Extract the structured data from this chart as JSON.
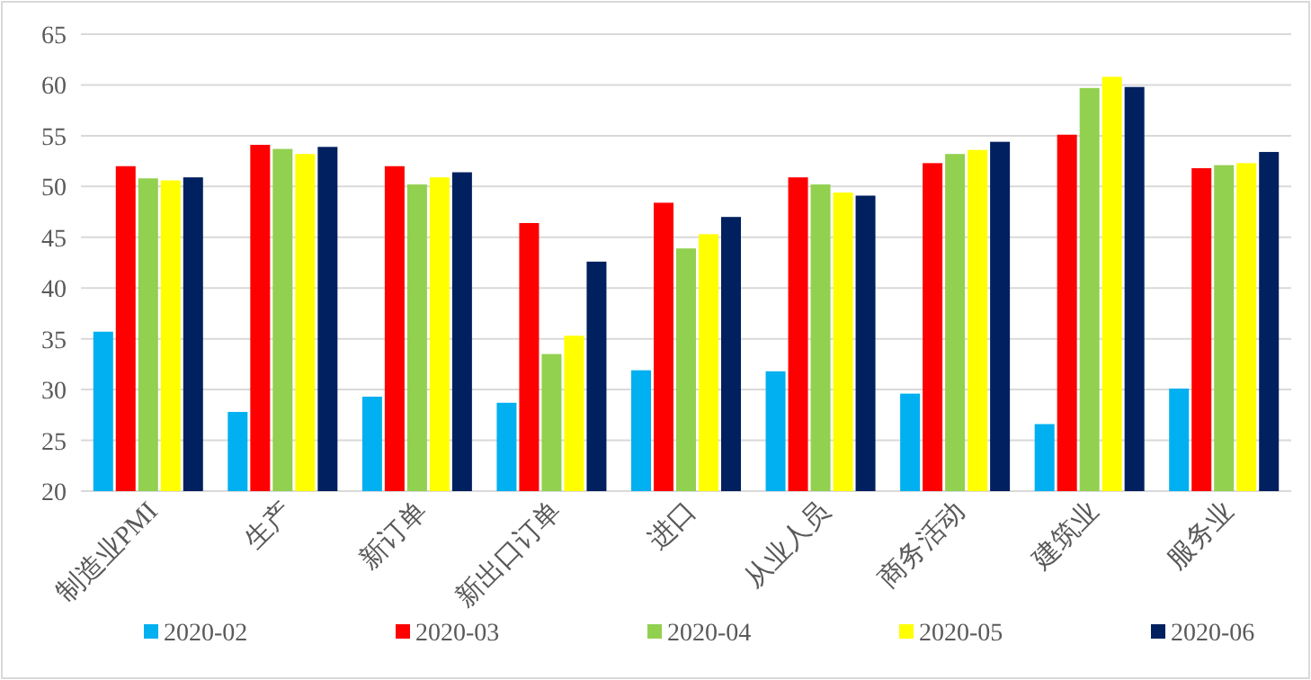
{
  "chart_data": {
    "type": "bar",
    "categories": [
      "制造业PMI",
      "生产",
      "新订单",
      "新出口订单",
      "进口",
      "从业人员",
      "商务活动",
      "建筑业",
      "服务业"
    ],
    "series": [
      {
        "name": "2020-02",
        "color": "#00b0f0",
        "values": [
          35.7,
          27.8,
          29.3,
          28.7,
          31.9,
          31.8,
          29.6,
          26.6,
          30.1
        ]
      },
      {
        "name": "2020-03",
        "color": "#ff0000",
        "values": [
          52.0,
          54.1,
          52.0,
          46.4,
          48.4,
          50.9,
          52.3,
          55.1,
          51.8
        ]
      },
      {
        "name": "2020-04",
        "color": "#92d050",
        "values": [
          50.8,
          53.7,
          50.2,
          33.5,
          43.9,
          50.2,
          53.2,
          59.7,
          52.1
        ]
      },
      {
        "name": "2020-05",
        "color": "#ffff00",
        "values": [
          50.6,
          53.2,
          50.9,
          35.3,
          45.3,
          49.4,
          53.6,
          60.8,
          52.3
        ]
      },
      {
        "name": "2020-06",
        "color": "#002060",
        "values": [
          50.9,
          53.9,
          51.4,
          42.6,
          47.0,
          49.1,
          54.4,
          59.8,
          53.4
        ]
      }
    ],
    "ylim": [
      20,
      65
    ],
    "yticks": [
      20,
      25,
      30,
      35,
      40,
      45,
      50,
      55,
      60,
      65
    ],
    "grid": "y",
    "legend": "bottom"
  }
}
